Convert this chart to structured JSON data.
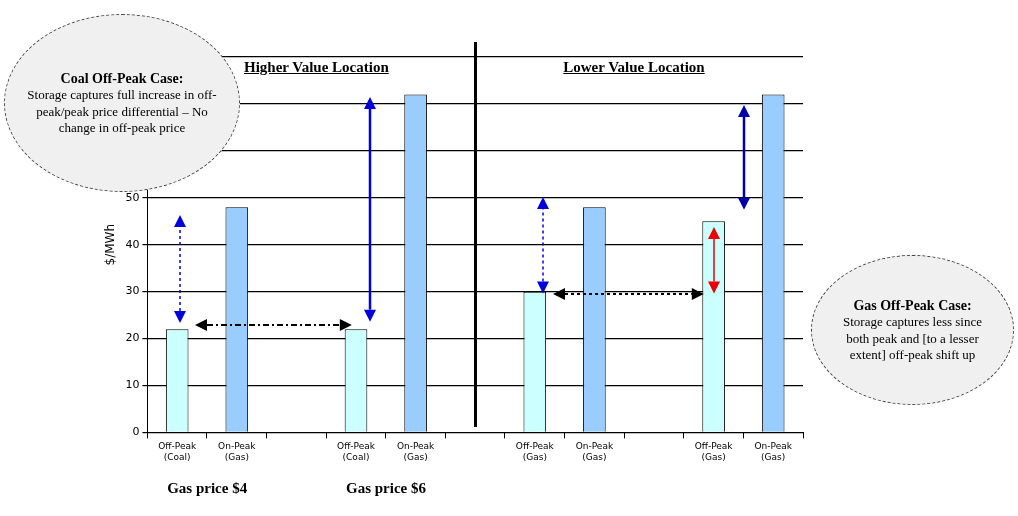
{
  "chart_data": {
    "type": "bar",
    "categories": [
      "Off-Peak (Coal)",
      "On-Peak (Gas)",
      null,
      "Off-Peak (Coal)",
      "On-Peak (Gas)",
      null,
      "Off-Peak (Gas)",
      "On-Peak (Gas)",
      null,
      "Off-Peak (Gas)",
      "On-Peak (Gas)"
    ],
    "values": [
      22,
      48,
      null,
      22,
      72,
      null,
      30,
      48,
      null,
      45,
      72
    ],
    "colors": [
      "#ccffff",
      "#99ccff",
      "#99ccff",
      "#ccffff",
      "#99ccff",
      "#99ccff",
      "#ccffff",
      "#99ccff",
      "#99ccff",
      "#ccffff",
      "#99ccff"
    ],
    "ylabel": "$/MWh",
    "ylim": [
      0,
      80
    ],
    "yticks": [
      0,
      10,
      20,
      30,
      40,
      50,
      {
        "value": 60,
        "label": null
      },
      {
        "value": 70,
        "label": null
      },
      {
        "value": 80,
        "label": null
      }
    ],
    "grid": "y",
    "legend": false,
    "annotations": [
      "Higher Value Location",
      "Lower Value Location",
      "Coal Off-Peak Case:",
      "Storage captures full increase in off-peak/peak price differential – No change in off-peak price",
      "Gas Off-Peak Case:",
      "Storage captures less since both peak and [to a lesser extent] off-peak shift up",
      "Gas price $4",
      "Gas price $6"
    ]
  }
}
